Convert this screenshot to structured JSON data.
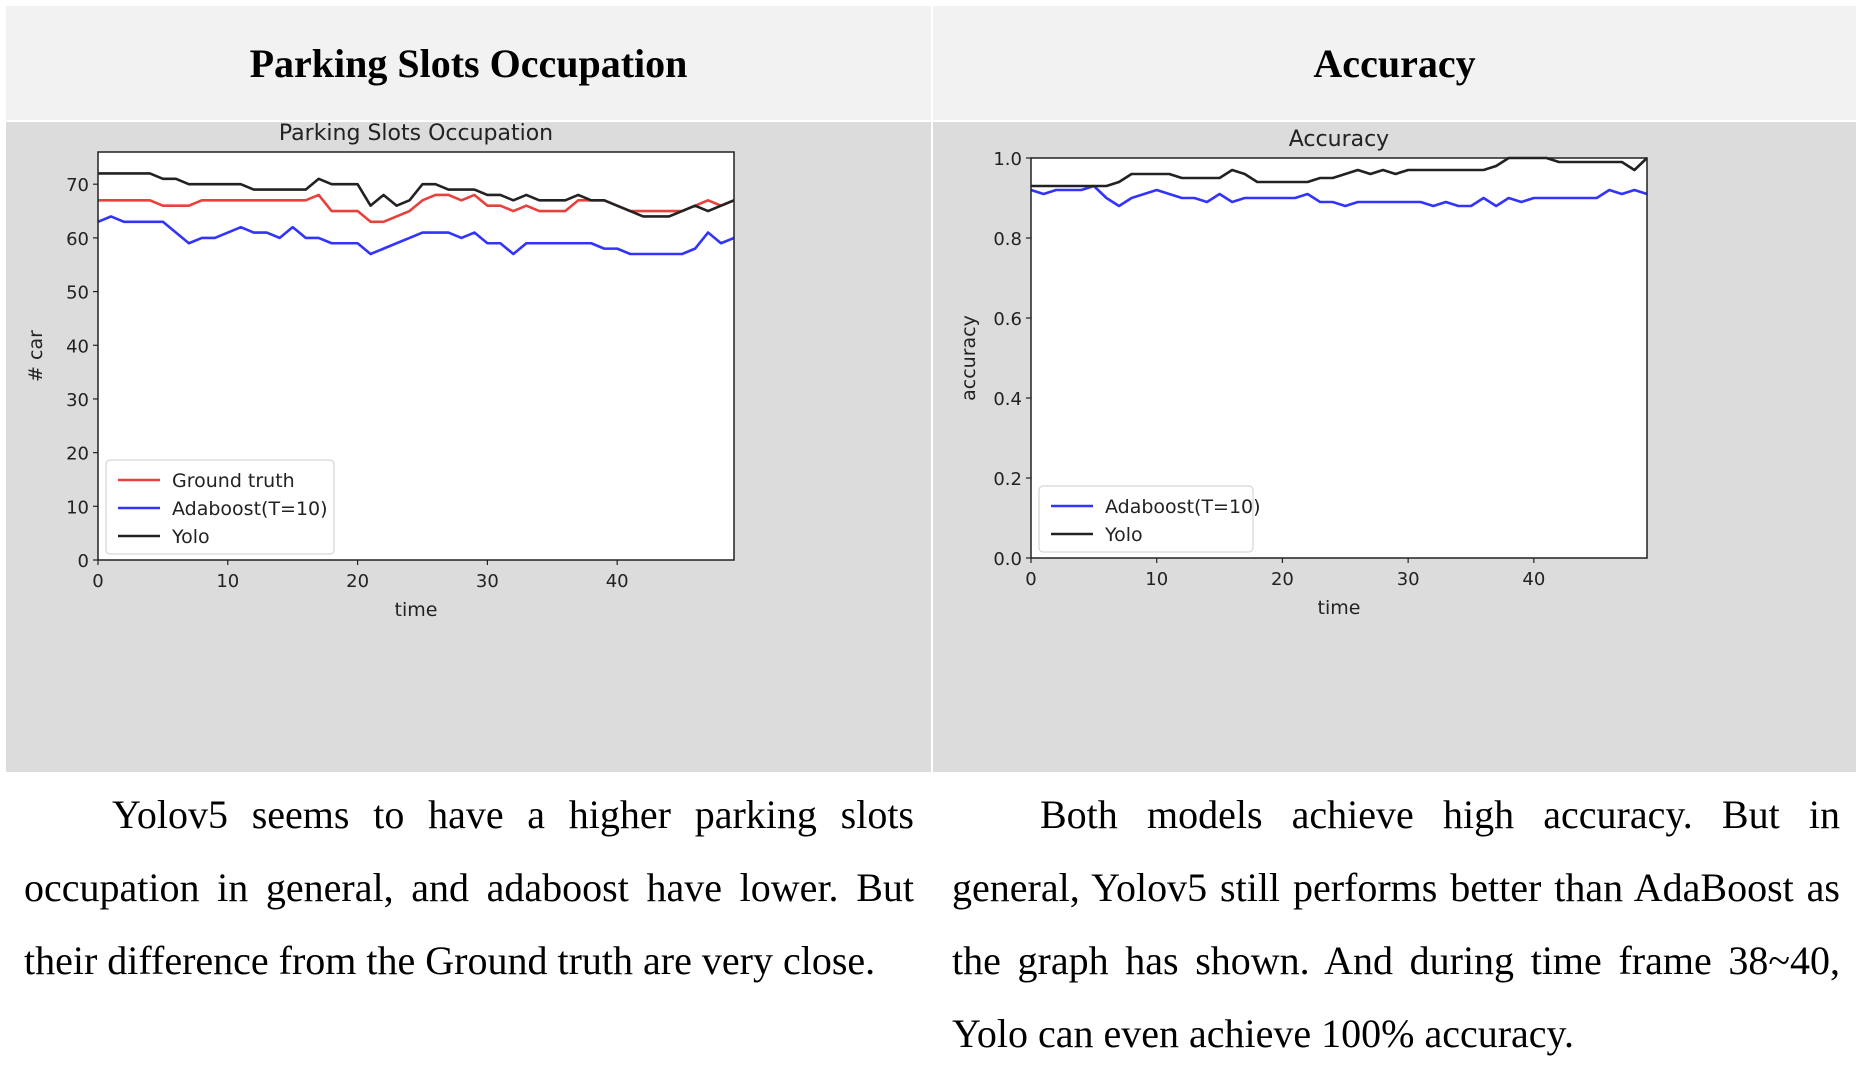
{
  "left": {
    "header": "Parking Slots Occupation",
    "description": "Yolov5 seems to have a higher parking slots occupation in general, and adaboost have lower. But their difference from the Ground truth are very close."
  },
  "right": {
    "header": "Accuracy",
    "description": "Both models achieve high accuracy. But in general, Yolov5 still performs better than AdaBoost as the graph has shown. And during time frame 38~40, Yolo can even achieve 100% accuracy."
  },
  "chart_data": [
    {
      "type": "line",
      "title": "Parking Slots Occupation",
      "xlabel": "time",
      "ylabel": "# car",
      "xlim": [
        0,
        49
      ],
      "ylim": [
        0,
        76
      ],
      "xticks": [
        0,
        10,
        20,
        30,
        40
      ],
      "yticks": [
        0,
        10,
        20,
        30,
        40,
        50,
        60,
        70
      ],
      "grid": false,
      "legend_position": "lower-left",
      "colors": {
        "Ground truth": "#e8403a",
        "Adaboost(T=10)": "#3333ff",
        "Yolo": "#222222"
      },
      "series": [
        {
          "name": "Ground truth",
          "values": [
            67,
            67,
            67,
            67,
            67,
            66,
            66,
            66,
            67,
            67,
            67,
            67,
            67,
            67,
            67,
            67,
            67,
            68,
            65,
            65,
            65,
            63,
            63,
            64,
            65,
            67,
            68,
            68,
            67,
            68,
            66,
            66,
            65,
            66,
            65,
            65,
            65,
            67,
            67,
            67,
            66,
            65,
            65,
            65,
            65,
            65,
            66,
            67,
            66,
            67
          ]
        },
        {
          "name": "Adaboost(T=10)",
          "values": [
            63,
            64,
            63,
            63,
            63,
            63,
            61,
            59,
            60,
            60,
            61,
            62,
            61,
            61,
            60,
            62,
            60,
            60,
            59,
            59,
            59,
            57,
            58,
            59,
            60,
            61,
            61,
            61,
            60,
            61,
            59,
            59,
            57,
            59,
            59,
            59,
            59,
            59,
            59,
            58,
            58,
            57,
            57,
            57,
            57,
            57,
            58,
            61,
            59,
            60
          ]
        },
        {
          "name": "Yolo",
          "values": [
            72,
            72,
            72,
            72,
            72,
            71,
            71,
            70,
            70,
            70,
            70,
            70,
            69,
            69,
            69,
            69,
            69,
            71,
            70,
            70,
            70,
            66,
            68,
            66,
            67,
            70,
            70,
            69,
            69,
            69,
            68,
            68,
            67,
            68,
            67,
            67,
            67,
            68,
            67,
            67,
            66,
            65,
            64,
            64,
            64,
            65,
            66,
            65,
            66,
            67
          ]
        }
      ]
    },
    {
      "type": "line",
      "title": "Accuracy",
      "xlabel": "time",
      "ylabel": "accuracy",
      "xlim": [
        0,
        49
      ],
      "ylim": [
        0,
        1.0
      ],
      "xticks": [
        0,
        10,
        20,
        30,
        40
      ],
      "yticks": [
        "0.0",
        "0.2",
        "0.4",
        "0.6",
        "0.8",
        "1.0"
      ],
      "grid": false,
      "legend_position": "lower-left",
      "colors": {
        "Adaboost(T=10)": "#3333ff",
        "Yolo": "#222222"
      },
      "series": [
        {
          "name": "Adaboost(T=10)",
          "values": [
            0.92,
            0.91,
            0.92,
            0.92,
            0.92,
            0.93,
            0.9,
            0.88,
            0.9,
            0.91,
            0.92,
            0.91,
            0.9,
            0.9,
            0.89,
            0.91,
            0.89,
            0.9,
            0.9,
            0.9,
            0.9,
            0.9,
            0.91,
            0.89,
            0.89,
            0.88,
            0.89,
            0.89,
            0.89,
            0.89,
            0.89,
            0.89,
            0.88,
            0.89,
            0.88,
            0.88,
            0.9,
            0.88,
            0.9,
            0.89,
            0.9,
            0.9,
            0.9,
            0.9,
            0.9,
            0.9,
            0.92,
            0.91,
            0.92,
            0.91
          ]
        },
        {
          "name": "Yolo",
          "values": [
            0.93,
            0.93,
            0.93,
            0.93,
            0.93,
            0.93,
            0.93,
            0.94,
            0.96,
            0.96,
            0.96,
            0.96,
            0.95,
            0.95,
            0.95,
            0.95,
            0.97,
            0.96,
            0.94,
            0.94,
            0.94,
            0.94,
            0.94,
            0.95,
            0.95,
            0.96,
            0.97,
            0.96,
            0.97,
            0.96,
            0.97,
            0.97,
            0.97,
            0.97,
            0.97,
            0.97,
            0.97,
            0.98,
            1.0,
            1.0,
            1.0,
            1.0,
            0.99,
            0.99,
            0.99,
            0.99,
            0.99,
            0.99,
            0.97,
            1.0
          ]
        }
      ]
    }
  ]
}
